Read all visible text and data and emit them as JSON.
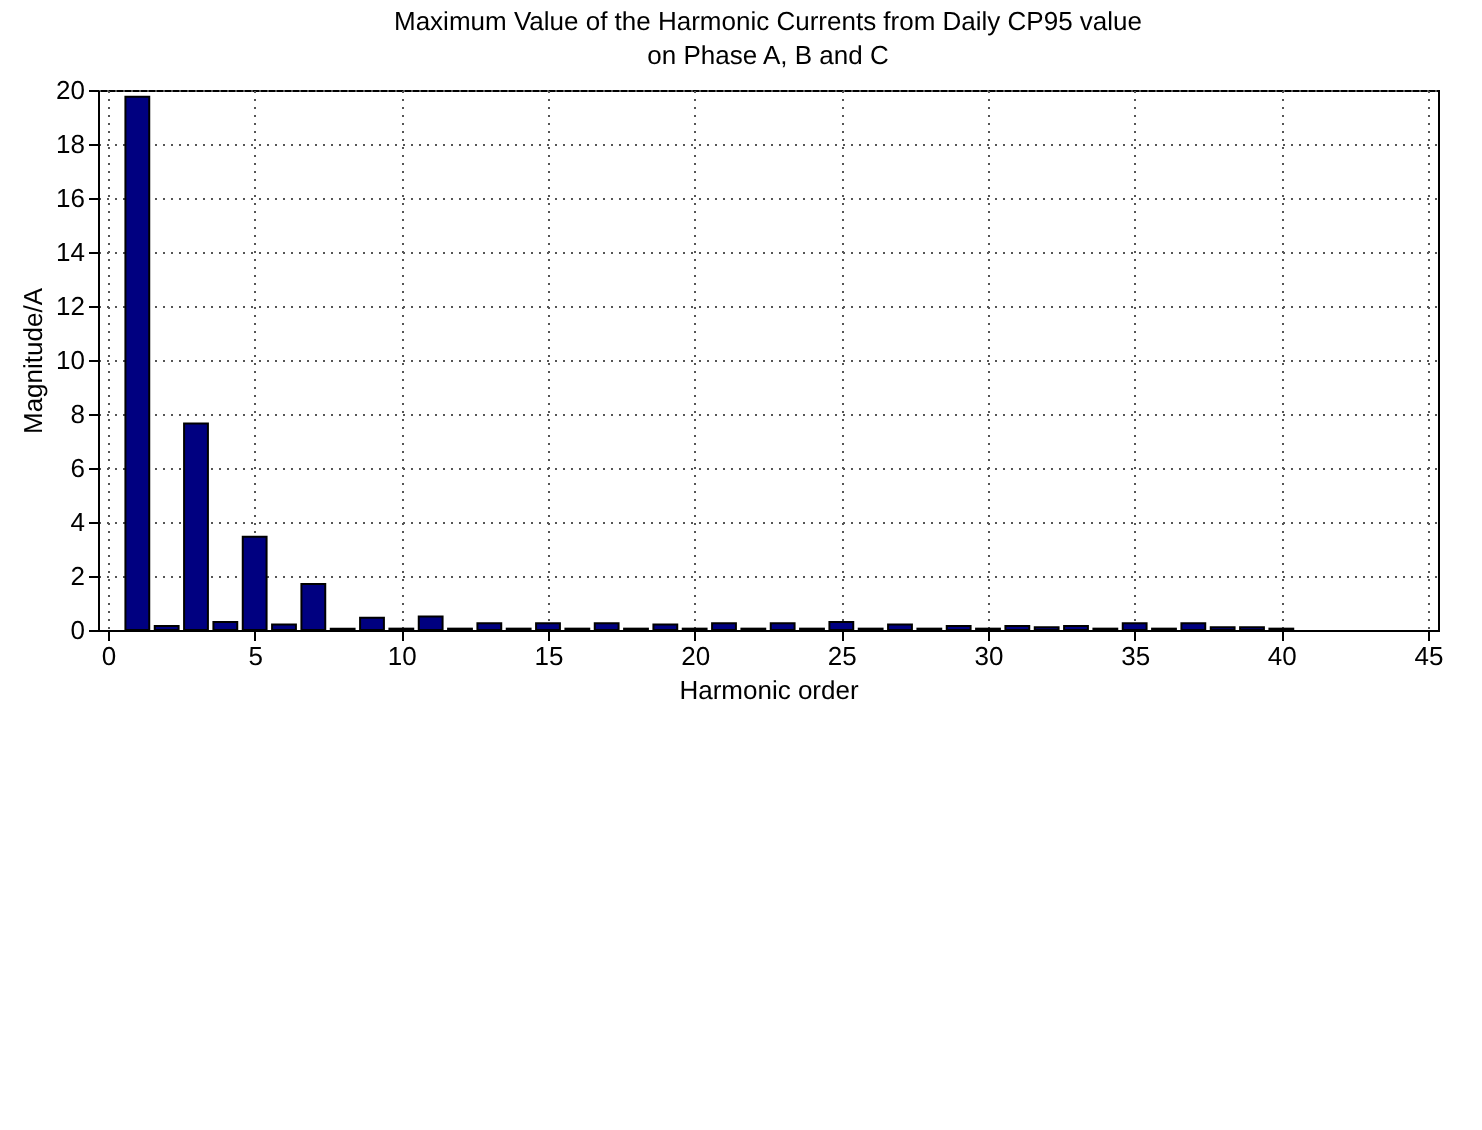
{
  "chart_data": {
    "type": "bar",
    "title": "Maximum Value of the Harmonic Currents from Daily CP95 value on Phase A, B and C",
    "xlabel": "Harmonic order",
    "ylabel": "Magnitude/A",
    "x": [
      1,
      2,
      3,
      4,
      5,
      6,
      7,
      8,
      9,
      10,
      11,
      12,
      13,
      14,
      15,
      16,
      17,
      18,
      19,
      20,
      21,
      22,
      23,
      24,
      25,
      26,
      27,
      28,
      29,
      30,
      31,
      32,
      33,
      34,
      35,
      36,
      37,
      38,
      39,
      40
    ],
    "values": [
      19.75,
      0.15,
      7.65,
      0.3,
      3.45,
      0.2,
      1.7,
      0.05,
      0.45,
      0.05,
      0.5,
      0.05,
      0.25,
      0.05,
      0.25,
      0.05,
      0.25,
      0.05,
      0.2,
      0.05,
      0.25,
      0.05,
      0.25,
      0.05,
      0.3,
      0.05,
      0.2,
      0.05,
      0.15,
      0.05,
      0.15,
      0.1,
      0.15,
      0.05,
      0.25,
      0.05,
      0.25,
      0.1,
      0.1,
      0.05
    ],
    "color": "#000080",
    "xlim": [
      0,
      45
    ],
    "xticks": [
      0,
      5,
      10,
      15,
      20,
      25,
      30,
      35,
      40,
      45
    ],
    "ylim": [
      0,
      20
    ],
    "yticks": [
      0,
      2,
      4,
      6,
      8,
      10,
      12,
      14,
      16,
      18,
      20
    ],
    "grid": true
  }
}
